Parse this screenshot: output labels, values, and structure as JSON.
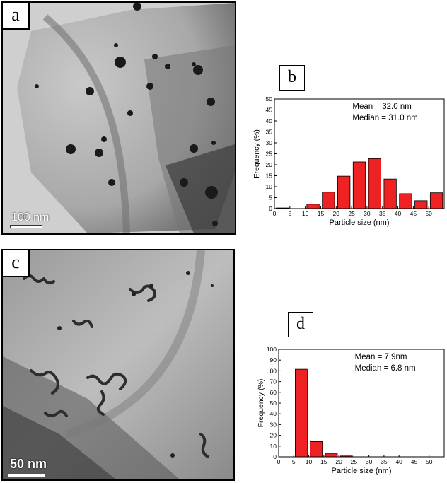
{
  "panels": {
    "a": {
      "label": "a",
      "scale_bar": "100 nm"
    },
    "b": {
      "label": "b"
    },
    "c": {
      "label": "c",
      "scale_bar": "50 nm"
    },
    "d": {
      "label": "d"
    }
  },
  "colors": {
    "bar_fill": "#ee2222",
    "bar_stroke": "#000000"
  },
  "chart_data": [
    {
      "id": "b",
      "type": "bar",
      "categories": [
        0,
        5,
        10,
        15,
        20,
        25,
        30,
        35,
        40,
        45,
        50
      ],
      "x": [
        2.5,
        12.5,
        17.5,
        22.5,
        27.5,
        32.5,
        37.5,
        42.5,
        47.5,
        52.5
      ],
      "values": [
        0.3,
        2.0,
        7.5,
        14.8,
        21.3,
        22.8,
        13.5,
        6.8,
        3.6,
        7.2
      ],
      "xlabel": "Particle size (nm)",
      "ylabel": "Frequency (%)",
      "xlim": [
        0,
        55
      ],
      "ylim": [
        0,
        50
      ],
      "yticks": [
        0,
        5,
        10,
        15,
        20,
        25,
        30,
        35,
        40,
        45,
        50
      ],
      "xticks": [
        0,
        5,
        10,
        15,
        20,
        25,
        30,
        35,
        40,
        45,
        50
      ],
      "annotations": [
        "Mean = 32.0 nm",
        "Median = 31.0 nm"
      ],
      "grid": false
    },
    {
      "id": "d",
      "type": "bar",
      "x": [
        7.5,
        12.5,
        17.5,
        22.5
      ],
      "values": [
        81.5,
        14.2,
        3.3,
        0.8
      ],
      "xlabel": "Particle size (nm)",
      "ylabel": "Frequency (%)",
      "xlim": [
        0,
        55
      ],
      "ylim": [
        0,
        100
      ],
      "yticks": [
        0,
        10,
        20,
        30,
        40,
        50,
        60,
        70,
        80,
        90,
        100
      ],
      "xticks": [
        0,
        5,
        10,
        15,
        20,
        25,
        30,
        35,
        40,
        45,
        50
      ],
      "annotations": [
        "Mean = 7.9nm",
        "Median = 6.8 nm"
      ],
      "grid": false
    }
  ]
}
